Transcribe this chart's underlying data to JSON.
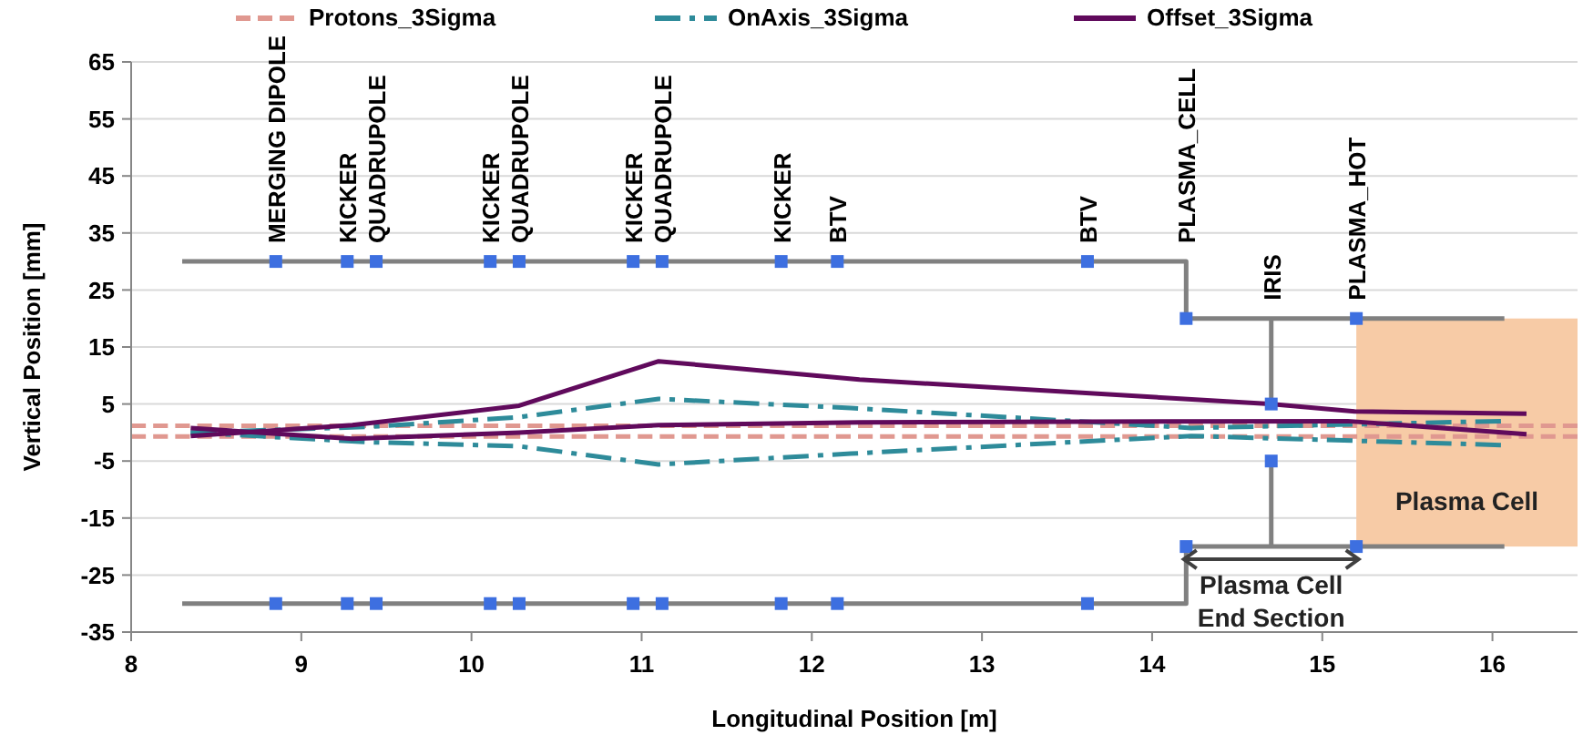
{
  "chart_data": {
    "type": "line",
    "xlabel": "Longitudinal Position [m]",
    "ylabel": "Vertical Position [mm]",
    "xlim": [
      8,
      16.5
    ],
    "xticks": [
      8,
      9,
      10,
      11,
      12,
      13,
      14,
      15,
      16
    ],
    "ylim": [
      -35,
      65
    ],
    "yticks": [
      -35,
      -25,
      -15,
      -5,
      5,
      15,
      25,
      35,
      45,
      55,
      65
    ],
    "grid": "y",
    "legend": "top",
    "series": [
      {
        "color": "#808080",
        "x": [
          8.3,
          14.2,
          14.2,
          16.07
        ],
        "values": [
          30,
          30,
          20,
          20
        ]
      },
      {
        "color": "#808080",
        "x": [
          8.3,
          14.2,
          14.2,
          16.07
        ],
        "values": [
          -30,
          -30,
          -20,
          -20
        ]
      },
      {
        "color": "#808080",
        "x": [
          14.7,
          14.7
        ],
        "values": [
          20,
          5
        ]
      },
      {
        "color": "#808080",
        "x": [
          14.7,
          14.7
        ],
        "values": [
          -5,
          -20
        ]
      },
      {
        "name": "Protons_3Sigma",
        "color": "#e09890",
        "line_style": "dashed",
        "x": [
          8,
          16.5
        ],
        "values": [
          1.2,
          1.2
        ]
      },
      {
        "color": "#e09890",
        "line_style": "dashed",
        "x": [
          8,
          16.5
        ],
        "values": [
          -0.7,
          -0.7
        ]
      },
      {
        "name": "OnAxis_3Sigma",
        "color": "#2e8b9a",
        "line_style": "dashdot",
        "x": [
          8.35,
          9.4,
          10.28,
          11.1,
          12.23,
          14.23,
          16.05
        ],
        "values": [
          0,
          1,
          2.7,
          5.9,
          4.3,
          0.8,
          2
        ]
      },
      {
        "color": "#2e8b9a",
        "line_style": "dashdot",
        "x": [
          8.35,
          9.4,
          10.28,
          11.1,
          12.23,
          14.23,
          16.05
        ],
        "values": [
          0,
          -1.7,
          -2.4,
          -5.6,
          -3.7,
          -0.6,
          -2.2
        ]
      },
      {
        "name": "Offset_3Sigma",
        "color": "#600a5c",
        "line_style": "solid",
        "x": [
          8.35,
          9.3,
          10.28,
          11.1,
          12.28,
          14.69,
          15.19,
          16.2
        ],
        "values": [
          -0.6,
          1.3,
          4.7,
          12.5,
          9.3,
          5,
          3.7,
          3.3
        ]
      },
      {
        "color": "#600a5c",
        "line_style": "solid",
        "x": [
          8.35,
          9.3,
          10.28,
          11.1,
          12.28,
          15.15,
          16.2
        ],
        "values": [
          0.8,
          -1.1,
          0,
          1.3,
          1.8,
          2,
          -0.3
        ]
      },
      {
        "type": "scatter",
        "color": "#3d6fe0",
        "marker": "square",
        "x": [
          8.85,
          9.27,
          9.44,
          10.11,
          10.28,
          10.95,
          11.12,
          11.82,
          12.15,
          13.62,
          8.85,
          9.27,
          9.44,
          10.11,
          10.28,
          10.95,
          11.12,
          11.82,
          12.15,
          13.62,
          14.2,
          14.2,
          14.7,
          14.7,
          15.2,
          15.2
        ],
        "values": [
          30,
          30,
          30,
          30,
          30,
          30,
          30,
          30,
          30,
          30,
          -30,
          -30,
          -30,
          -30,
          -30,
          -30,
          -30,
          -30,
          -30,
          -30,
          20,
          -20,
          5,
          -5,
          20,
          -20
        ]
      }
    ],
    "bands": [
      {
        "axis": "x",
        "from": 15.2,
        "to": 16.5,
        "label": "Plasma Cell",
        "color": "#f7cba6"
      }
    ],
    "annotations": [
      {
        "text": "MERGING DIPOLE",
        "x": 8.85,
        "y": 30
      },
      {
        "text": "KICKER",
        "x": 9.27,
        "y": 30
      },
      {
        "text": "QUADRUPOLE",
        "x": 9.44,
        "y": 30
      },
      {
        "text": "KICKER",
        "x": 10.11,
        "y": 30
      },
      {
        "text": "QUADRUPOLE",
        "x": 10.28,
        "y": 30
      },
      {
        "text": "KICKER",
        "x": 10.95,
        "y": 30
      },
      {
        "text": "QUADRUPOLE",
        "x": 11.12,
        "y": 30
      },
      {
        "text": "KICKER",
        "x": 11.82,
        "y": 30
      },
      {
        "text": "BTV",
        "x": 12.15,
        "y": 30
      },
      {
        "text": "BTV",
        "x": 13.62,
        "y": 30
      },
      {
        "text": "PLASMA_CELL",
        "x": 14.2,
        "y": 30
      },
      {
        "text": "IRIS",
        "x": 14.7,
        "y": 20
      },
      {
        "text": "PLASMA_HOT",
        "x": 15.2,
        "y": 20
      },
      {
        "text": "Plasma Cell\nEnd Section",
        "x": 14.7,
        "y": -20
      }
    ]
  }
}
